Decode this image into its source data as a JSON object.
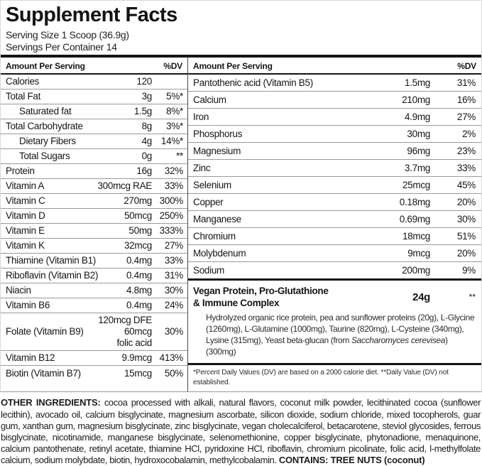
{
  "title": "Supplement Facts",
  "serving_size": "Serving Size 1 Scoop (36.9g)",
  "servings_per_container": "Servings Per Container 14",
  "columns": {
    "header_amount": "Amount Per Serving",
    "header_dv": "%DV"
  },
  "left_rows": [
    {
      "name": "Calories",
      "amount": "120",
      "dv": "",
      "indent": false
    },
    {
      "name": "Total Fat",
      "amount": "3g",
      "dv": "5%*",
      "indent": false
    },
    {
      "name": "Saturated fat",
      "amount": "1.5g",
      "dv": "8%*",
      "indent": true
    },
    {
      "name": "Total Carbohydrate",
      "amount": "8g",
      "dv": "3%*",
      "indent": false
    },
    {
      "name": "Dietary Fibers",
      "amount": "4g",
      "dv": "14%*",
      "indent": true
    },
    {
      "name": "Total Sugars",
      "amount": "0g",
      "dv": "**",
      "indent": true
    },
    {
      "name": "Protein",
      "amount": "16g",
      "dv": "32%",
      "indent": false
    },
    {
      "name": "Vitamin A",
      "amount": "300mcg RAE",
      "dv": "33%",
      "indent": false
    },
    {
      "name": "Vitamin C",
      "amount": "270mg",
      "dv": "300%",
      "indent": false
    },
    {
      "name": "Vitamin D",
      "amount": "50mcg",
      "dv": "250%",
      "indent": false
    },
    {
      "name": "Vitamin E",
      "amount": "50mg",
      "dv": "333%",
      "indent": false
    },
    {
      "name": "Vitamin K",
      "amount": "32mcg",
      "dv": "27%",
      "indent": false
    },
    {
      "name": "Thiamine (Vitamin B1)",
      "amount": "0.4mg",
      "dv": "33%",
      "indent": false
    },
    {
      "name": "Riboflavin (Vitamin B2)",
      "amount": "0.4mg",
      "dv": "31%",
      "indent": false
    },
    {
      "name": "Niacin",
      "amount": "4.8mg",
      "dv": "30%",
      "indent": false
    },
    {
      "name": "Vitamin B6",
      "amount": "0.4mg",
      "dv": "24%",
      "indent": false
    },
    {
      "name": "Folate (Vitamin B9)",
      "amount": [
        "120mcg DFE",
        "60mcg",
        "folic acid"
      ],
      "dv": "30%",
      "indent": false
    },
    {
      "name": "Vitamin B12",
      "amount": "9.9mcg",
      "dv": "413%",
      "indent": false
    },
    {
      "name": "Biotin (Vitamin B7)",
      "amount": "15mcg",
      "dv": "50%",
      "indent": false
    }
  ],
  "right_rows": [
    {
      "name": "Pantothenic acid (Vitamin B5)",
      "amount": "1.5mg",
      "dv": "31%",
      "indent": false
    },
    {
      "name": "Calcium",
      "amount": "210mg",
      "dv": "16%",
      "indent": false
    },
    {
      "name": "Iron",
      "amount": "4.9mg",
      "dv": "27%",
      "indent": false
    },
    {
      "name": "Phosphorus",
      "amount": "30mg",
      "dv": "2%",
      "indent": false
    },
    {
      "name": "Magnesium",
      "amount": "96mg",
      "dv": "23%",
      "indent": false
    },
    {
      "name": "Zinc",
      "amount": "3.7mg",
      "dv": "33%",
      "indent": false
    },
    {
      "name": "Selenium",
      "amount": "25mcg",
      "dv": "45%",
      "indent": false
    },
    {
      "name": "Copper",
      "amount": "0.18mg",
      "dv": "20%",
      "indent": false
    },
    {
      "name": "Manganese",
      "amount": "0.69mg",
      "dv": "30%",
      "indent": false
    },
    {
      "name": "Chromium",
      "amount": "18mcg",
      "dv": "51%",
      "indent": false
    },
    {
      "name": "Molybdenum",
      "amount": "9mcg",
      "dv": "20%",
      "indent": false
    },
    {
      "name": "Sodium",
      "amount": "200mg",
      "dv": "9%",
      "indent": false
    }
  ],
  "complex": {
    "name_lines": [
      "Vegan Protein, Pro-Glutathione",
      "& Immune Complex"
    ],
    "amount": "24g",
    "dv": "**",
    "description_pre": "Hydrolyzed organic rice protein, pea and sunflower proteins (20g), L-Glycine (1260mg), L-Glutamine (1000mg), Taurine (820mg), L-Cysteine (340mg), Lysine (315mg), Yeast beta-glucan (from ",
    "description_italic": "Saccharomyces cerevisea",
    "description_post": ") (300mg)"
  },
  "footnote": "*Percent Daily Values (DV) are based on a 2000 calorie diet. **Daily Value (DV) not established.",
  "other_ingredients": {
    "label": "OTHER INGREDIENTS:",
    "text": " cocoa processed with alkali, natural flavors, coconut milk powder, lecithinated cocoa (sunflower lecithin), avocado oil, calcium bisglycinate, magnesium ascorbate, silicon dioxide, sodium chloride, mixed tocopherols, guar gum, xanthan gum, magnesium bisglycinate, zinc bisglycinate, vegan cholecalciferol, betacarotene, steviol glycosides, ferrous bisglycinate, nicotinamide, manganese bisglycinate, selenomethionine, copper bisglycinate, phytonadione, menaquinone, calcium pantothenate, retinyl acetate, thiamine HCl, pyridoxine HCl, riboflavin, chromium picolinate, folic acid, l-methylfolate calcium, sodium molybdate, biotin, hydroxocobalamin, methylcobalamin. ",
    "contains": "CONTAINS: TREE NUTS (coconut)"
  }
}
